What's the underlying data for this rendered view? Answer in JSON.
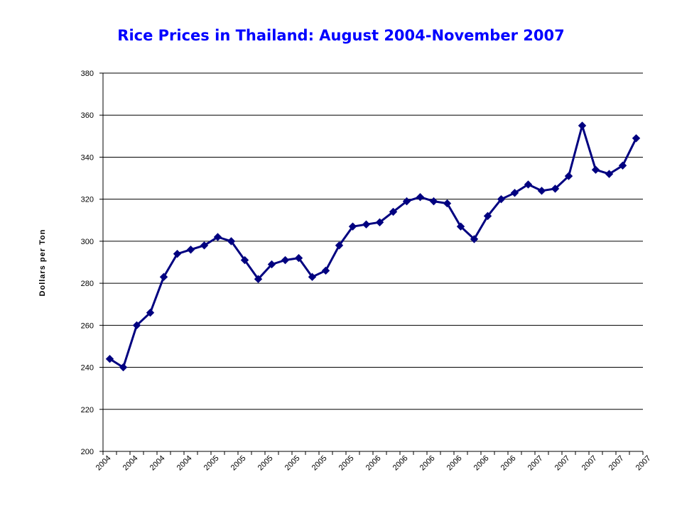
{
  "chart_data": {
    "type": "line",
    "title": "Rice Prices in Thailand: August 2004-November 2007",
    "xlabel": "",
    "ylabel": "Dollars per Ton",
    "ylim": [
      200,
      380
    ],
    "yticks": [
      200,
      220,
      240,
      260,
      280,
      300,
      320,
      340,
      360,
      380
    ],
    "grid": true,
    "legend": "none",
    "colors": {
      "line": "#000080",
      "marker": "#000080",
      "grid": "#000000"
    },
    "x_tick_labels": [
      "2004",
      "2004",
      "2004",
      "2004",
      "2005",
      "2005",
      "2005",
      "2005",
      "2005",
      "2005",
      "2006",
      "2006",
      "2006",
      "2006",
      "2006",
      "2006",
      "2007",
      "2007",
      "2007",
      "2007",
      "2007"
    ],
    "series": [
      {
        "values": [
          244,
          240,
          260,
          266,
          283,
          294,
          296,
          298,
          302,
          300,
          291,
          282,
          289,
          291,
          292,
          283,
          286,
          298,
          307,
          308,
          309,
          314,
          319,
          321,
          319,
          318,
          307,
          301,
          312,
          320,
          323,
          327,
          324,
          325,
          331,
          355,
          334,
          332,
          336,
          349
        ]
      }
    ]
  }
}
